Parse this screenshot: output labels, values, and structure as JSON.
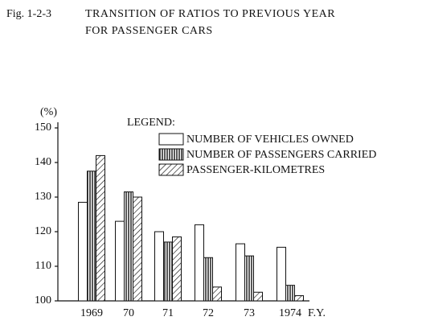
{
  "chart_data": {
    "type": "bar",
    "figure_label": "Fig. 1-2-3",
    "title": [
      "TRANSITION OF RATIOS TO PREVIOUS YEAR",
      "FOR PASSENGER CARS"
    ],
    "y_unit": "(%)",
    "x_label": "F.Y.",
    "legend_title": "LEGEND:",
    "categories": [
      "1969",
      "70",
      "71",
      "72",
      "73",
      "1974"
    ],
    "series": [
      {
        "name": "NUMBER OF VEHICLES OWNED",
        "pattern": "none",
        "values": [
          128.5,
          123,
          120,
          122,
          116.5,
          115.5
        ]
      },
      {
        "name": "NUMBER OF PASSENGERS CARRIED",
        "pattern": "vertical",
        "values": [
          137.5,
          131.5,
          117,
          112.5,
          113,
          104.5
        ]
      },
      {
        "name": "PASSENGER-KILOMETRES",
        "pattern": "diagonal",
        "values": [
          142,
          130,
          118.5,
          104,
          102.5,
          101.5
        ]
      }
    ],
    "ylim": [
      100,
      150
    ],
    "yticks": [
      100,
      110,
      120,
      130,
      140,
      150
    ]
  }
}
